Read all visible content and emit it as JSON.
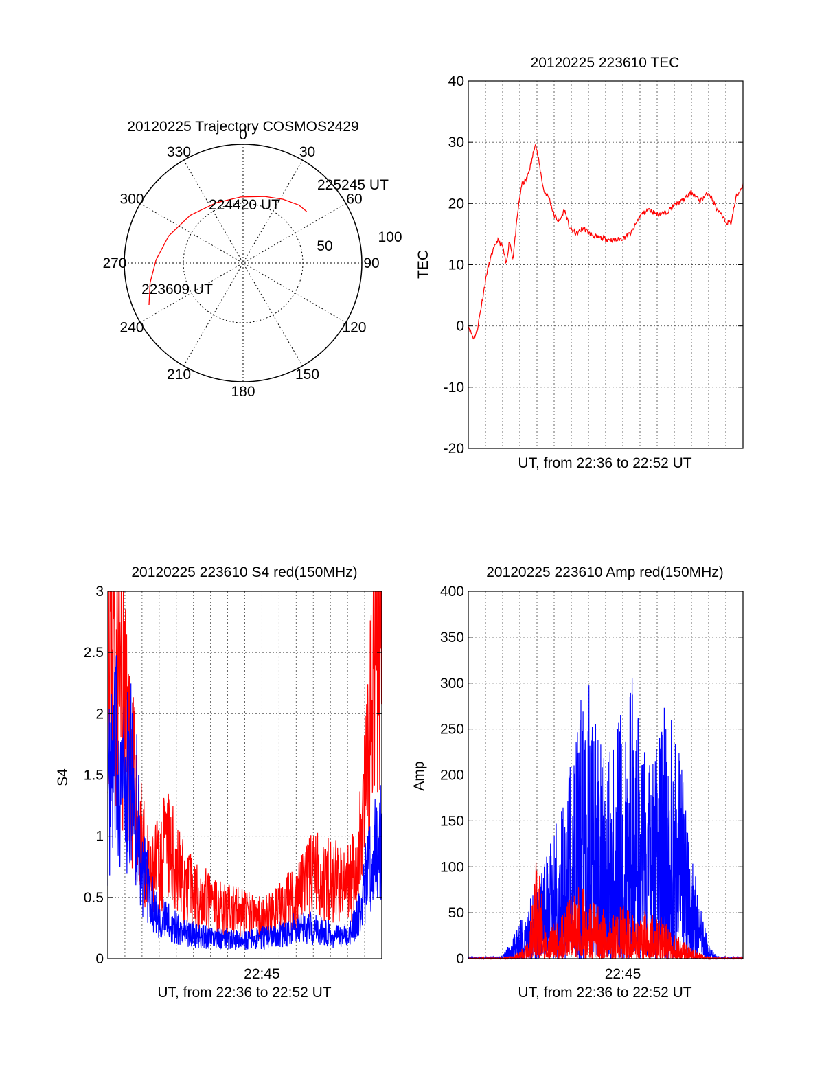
{
  "chart_data": [
    {
      "type": "polar",
      "title": "20120225 Trajectory COSMOS2429",
      "azimuth_labels": [
        "0",
        "30",
        "60",
        "90",
        "120",
        "150",
        "180",
        "210",
        "240",
        "270",
        "300",
        "330"
      ],
      "radial_labels": [
        "50",
        "100"
      ],
      "series": [
        {
          "color": "#ff0000",
          "points": [
            {
              "az": 246,
              "el": 12
            },
            {
              "az": 258,
              "el": 18
            },
            {
              "az": 272,
              "el": 24
            },
            {
              "az": 290,
              "el": 30
            },
            {
              "az": 312,
              "el": 36
            },
            {
              "az": 336,
              "el": 40
            },
            {
              "az": 358,
              "el": 40
            },
            {
              "az": 18,
              "el": 37
            },
            {
              "az": 32,
              "el": 33
            },
            {
              "az": 44,
              "el": 29
            },
            {
              "az": 51,
              "el": 28
            }
          ]
        }
      ],
      "annotations": [
        {
          "text": "225245 UT",
          "az": 51,
          "el": 28
        },
        {
          "text": "224420 UT",
          "az": 335,
          "el": 52
        },
        {
          "text": "223609 UT",
          "az": 246,
          "el": 12
        }
      ]
    },
    {
      "type": "line",
      "title": "20120225 223610 TEC",
      "xlabel": "UT, from 22:36 to 22:52 UT",
      "ylabel": "TEC",
      "xlim": [
        0,
        16
      ],
      "ylim": [
        -20,
        40
      ],
      "yticks": [
        -20,
        -10,
        0,
        10,
        20,
        30,
        40
      ],
      "grid": true,
      "series": [
        {
          "color": "#ff0000",
          "x": [
            0,
            0.3,
            0.5,
            0.8,
            1.1,
            1.4,
            1.7,
            2.0,
            2.2,
            2.4,
            2.6,
            2.9,
            3.1,
            3.4,
            3.7,
            3.9,
            4.1,
            4.4,
            4.7,
            5.0,
            5.3,
            5.6,
            5.9,
            6.3,
            6.7,
            7.1,
            7.5,
            8.0,
            8.5,
            9.0,
            9.5,
            10.0,
            10.5,
            11.0,
            11.5,
            12.0,
            12.5,
            13.0,
            13.5,
            14.0,
            14.5,
            15.0,
            15.3,
            15.6,
            16.0
          ],
          "y": [
            0,
            -2,
            -1,
            4,
            9,
            12,
            14,
            13,
            10,
            14,
            11,
            19,
            23,
            24,
            27,
            30,
            27,
            22,
            21,
            18,
            17,
            19,
            16,
            15,
            16,
            15,
            14.5,
            14.2,
            14.0,
            14.3,
            15.2,
            18.0,
            19.0,
            18.3,
            18.5,
            19.7,
            20.5,
            21.8,
            20.4,
            21.8,
            19.0,
            17.0,
            16.8,
            21.0,
            23.0
          ]
        }
      ]
    },
    {
      "type": "line",
      "title": "20120225 223610 S4 red(150MHz)",
      "xlabel": "UT, from 22:36 to 22:52 UT",
      "ylabel": "S4",
      "xlim": [
        0,
        16
      ],
      "ylim": [
        0,
        3
      ],
      "yticks": [
        0,
        0.5,
        1,
        1.5,
        2,
        2.5,
        3
      ],
      "xtick_label": "22:45",
      "xtick_value": 9,
      "grid": true,
      "series": [
        {
          "color": "#ff0000",
          "x": [
            0,
            0.5,
            1.0,
            1.5,
            2.0,
            2.5,
            3.0,
            3.5,
            4.0,
            4.5,
            5.0,
            5.5,
            6.0,
            6.5,
            7.0,
            7.5,
            8.0,
            8.5,
            9.0,
            9.5,
            10.0,
            10.5,
            11.0,
            11.5,
            12.0,
            12.5,
            13.0,
            13.5,
            14.0,
            14.5,
            15.0,
            15.5,
            16.0
          ],
          "y": [
            3.0,
            2.5,
            2.0,
            1.4,
            0.9,
            0.6,
            0.8,
            0.9,
            0.75,
            0.6,
            0.55,
            0.5,
            0.45,
            0.42,
            0.4,
            0.38,
            0.36,
            0.35,
            0.34,
            0.36,
            0.4,
            0.45,
            0.5,
            0.6,
            0.7,
            0.68,
            0.65,
            0.62,
            0.6,
            0.7,
            1.2,
            2.3,
            3.0
          ]
        },
        {
          "color": "#0000ff",
          "x": [
            0,
            0.5,
            1.0,
            1.5,
            2.0,
            2.5,
            3.0,
            3.5,
            4.0,
            4.5,
            5.0,
            5.5,
            6.0,
            6.5,
            7.0,
            7.5,
            8.0,
            8.5,
            9.0,
            9.5,
            10.0,
            10.5,
            11.0,
            11.5,
            12.0,
            12.5,
            13.0,
            13.5,
            14.0,
            14.5,
            15.0,
            15.5,
            16.0
          ],
          "y": [
            1.3,
            1.6,
            1.4,
            1.5,
            0.7,
            0.5,
            0.35,
            0.3,
            0.25,
            0.22,
            0.2,
            0.18,
            0.17,
            0.16,
            0.16,
            0.15,
            0.15,
            0.16,
            0.17,
            0.18,
            0.2,
            0.22,
            0.25,
            0.26,
            0.24,
            0.22,
            0.2,
            0.18,
            0.2,
            0.3,
            0.6,
            0.9,
            1.0
          ]
        }
      ]
    },
    {
      "type": "line",
      "title": "20120225 223610 Amp red(150MHz)",
      "xlabel": "UT, from 22:36 to 22:52 UT",
      "ylabel": "Amp",
      "xlim": [
        0,
        16
      ],
      "ylim": [
        0,
        400
      ],
      "yticks": [
        0,
        50,
        100,
        150,
        200,
        250,
        300,
        350,
        400
      ],
      "xtick_label": "22:45",
      "xtick_value": 9,
      "grid": true,
      "series": [
        {
          "color": "#0000ff",
          "x": [
            0,
            1,
            2,
            2.5,
            3,
            3.5,
            4,
            4.5,
            5,
            5.5,
            6,
            6.5,
            7,
            7.5,
            8,
            8.5,
            9,
            9.5,
            10,
            10.5,
            11,
            11.5,
            12,
            12.5,
            13,
            13.5,
            14,
            14.5,
            15,
            16
          ],
          "y": [
            2,
            2,
            3,
            20,
            40,
            60,
            90,
            110,
            140,
            170,
            220,
            280,
            300,
            260,
            220,
            240,
            280,
            310,
            260,
            220,
            240,
            280,
            260,
            200,
            120,
            60,
            15,
            3,
            2,
            2
          ]
        },
        {
          "color": "#ff0000",
          "x": [
            0,
            1,
            2,
            2.5,
            3,
            3.5,
            4,
            4.5,
            5,
            5.5,
            6,
            6.5,
            7,
            7.5,
            8,
            8.5,
            9,
            9.5,
            10,
            10.5,
            11,
            11.5,
            12,
            12.5,
            13,
            13.5,
            14,
            14.5,
            15,
            16
          ],
          "y": [
            1,
            1,
            1,
            3,
            8,
            20,
            120,
            30,
            40,
            50,
            70,
            80,
            70,
            60,
            55,
            50,
            60,
            50,
            45,
            60,
            55,
            40,
            30,
            20,
            12,
            6,
            2,
            1,
            1,
            1
          ]
        }
      ]
    }
  ]
}
